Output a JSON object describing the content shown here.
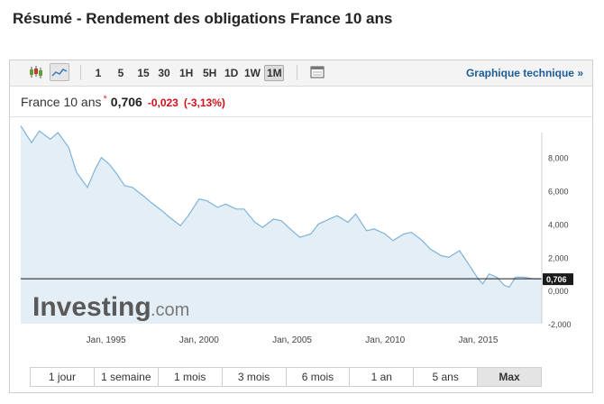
{
  "page": {
    "title": "Résumé - Rendement des obligations France 10 ans"
  },
  "toolbar": {
    "chart_type_icons": [
      "candlestick-icon",
      "area-line-icon"
    ],
    "intervals": [
      "1",
      "5",
      "15",
      "30",
      "1H",
      "5H",
      "1D",
      "1W",
      "1M"
    ],
    "selected_interval": "1M",
    "calendar_icon": "calendar-icon",
    "technical_link": "Graphique technique",
    "technical_link_arrow": "»"
  },
  "quote": {
    "name": "France 10 ans",
    "marker": "*",
    "last": "0,706",
    "change": "-0,023",
    "change_pct": "(-3,13%)"
  },
  "watermark": {
    "brand": "Investing",
    "suffix": ".com"
  },
  "colors": {
    "line": "#7fb2d9",
    "area": "#e4eef6",
    "negative": "#d0121b",
    "link": "#1c5c99",
    "current_line": "#1a1a1a"
  },
  "chart_data": {
    "type": "area",
    "title": "",
    "xlabel": "",
    "ylabel": "",
    "x_ticks": [
      "Jan, 1995",
      "Jan, 2000",
      "Jan, 2005",
      "Jan, 2010",
      "Jan, 2015"
    ],
    "y_ticks": [
      "-2,000",
      "0,000",
      "2,000",
      "4,000",
      "6,000",
      "8,000"
    ],
    "ylim": [
      -2.0,
      9.5
    ],
    "xlim": [
      "1990-06",
      "2018-06"
    ],
    "current_value_label": "0,706",
    "current_value": 0.706,
    "grid": false,
    "series": [
      {
        "x": [
          "1990-06",
          "1991-01",
          "1991-06",
          "1992-01",
          "1992-06",
          "1993-01",
          "1993-06",
          "1994-01",
          "1994-06",
          "1994-10",
          "1995-03",
          "1995-08",
          "1996-01",
          "1996-06",
          "1997-01",
          "1997-06",
          "1998-01",
          "1998-06",
          "1999-01",
          "1999-06",
          "2000-01",
          "2000-06",
          "2001-01",
          "2001-06",
          "2002-01",
          "2002-06",
          "2003-01",
          "2003-06",
          "2004-01",
          "2004-06",
          "2005-01",
          "2005-06",
          "2006-01",
          "2006-06",
          "2007-01",
          "2007-06",
          "2008-01",
          "2008-06",
          "2009-01",
          "2009-06",
          "2010-01",
          "2010-06",
          "2011-01",
          "2011-06",
          "2012-01",
          "2012-06",
          "2013-01",
          "2013-06",
          "2014-01",
          "2014-06",
          "2015-01",
          "2015-04",
          "2015-08",
          "2016-01",
          "2016-06",
          "2016-09",
          "2017-01",
          "2017-06",
          "2018-01",
          "2018-06"
        ],
        "values": [
          9.9,
          8.9,
          9.6,
          9.1,
          9.5,
          8.6,
          7.1,
          6.2,
          7.3,
          8.0,
          7.6,
          7.0,
          6.3,
          6.2,
          5.7,
          5.3,
          4.8,
          4.4,
          3.9,
          4.5,
          5.5,
          5.4,
          5.0,
          5.2,
          4.9,
          4.9,
          4.1,
          3.8,
          4.3,
          4.2,
          3.6,
          3.2,
          3.4,
          4.0,
          4.3,
          4.5,
          4.1,
          4.6,
          3.6,
          3.7,
          3.4,
          3.0,
          3.4,
          3.5,
          3.0,
          2.5,
          2.1,
          2.0,
          2.4,
          1.7,
          0.7,
          0.4,
          1.0,
          0.8,
          0.3,
          0.2,
          0.8,
          0.8,
          0.7,
          0.706
        ]
      }
    ]
  },
  "ranges": {
    "items": [
      "1 jour",
      "1 semaine",
      "1 mois",
      "3 mois",
      "6 mois",
      "1 an",
      "5 ans",
      "Max"
    ],
    "selected": "Max"
  }
}
